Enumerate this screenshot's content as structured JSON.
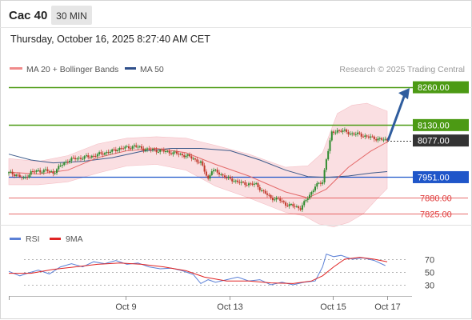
{
  "header": {
    "instrument": "Cac 40",
    "timeframe": "30 MIN",
    "datetime": "Thursday, October 16, 2025 8:27:40 AM CET"
  },
  "legend": {
    "ma20_label": "MA 20 + Bollinger Bands",
    "ma50_label": "MA 50",
    "copyright": "Research © 2025 Trading Central",
    "rsi_label": "RSI",
    "rsi_ma_label": "9MA"
  },
  "colors": {
    "green": "#4c9a14",
    "blue": "#1f56c9",
    "red": "#e03a3a",
    "candle_up": "#2e8b2e",
    "candle_down": "#c0392b",
    "band": "#fadadd",
    "ma50": "#3d5a8a",
    "rsi": "#5b80d6",
    "rsi_ma": "#e02424",
    "arrow": "#2f5d9e"
  },
  "chart_data": [
    {
      "type": "candlestick",
      "title": "",
      "ylim": [
        7790,
        8285
      ],
      "x_ticks": [
        "Oct 9",
        "Oct 13",
        "Oct 15",
        "Oct 17"
      ],
      "current_price": 8077.0,
      "levels": [
        {
          "label": "8260.00",
          "value": 8260.0,
          "style": "resistance"
        },
        {
          "label": "8130.00",
          "value": 8130.0,
          "style": "resistance"
        },
        {
          "label": "8077.00",
          "value": 8077.0,
          "style": "current"
        },
        {
          "label": "7951.00",
          "value": 7951.0,
          "style": "pivot"
        },
        {
          "label": "7880.00",
          "value": 7880.0,
          "style": "support"
        },
        {
          "label": "7825.00",
          "value": 7825.0,
          "style": "support"
        }
      ],
      "close_path": [
        [
          0,
          7965
        ],
        [
          4,
          7960
        ],
        [
          8,
          7945
        ],
        [
          12,
          7968
        ],
        [
          16,
          7972
        ],
        [
          20,
          7974
        ],
        [
          24,
          7966
        ],
        [
          28,
          7990
        ],
        [
          32,
          8008
        ],
        [
          36,
          8015
        ],
        [
          40,
          8018
        ],
        [
          44,
          8022
        ],
        [
          48,
          8028
        ],
        [
          52,
          8035
        ],
        [
          56,
          8040
        ],
        [
          60,
          8050
        ],
        [
          64,
          8052
        ],
        [
          68,
          8058
        ],
        [
          72,
          8050
        ],
        [
          76,
          8045
        ],
        [
          80,
          8043
        ],
        [
          84,
          8040
        ],
        [
          88,
          8036
        ],
        [
          92,
          8030
        ],
        [
          96,
          8025
        ],
        [
          100,
          8015
        ],
        [
          104,
          8000
        ],
        [
          108,
          7945
        ],
        [
          110,
          7975
        ],
        [
          114,
          7965
        ],
        [
          118,
          7948
        ],
        [
          122,
          7940
        ],
        [
          126,
          7930
        ],
        [
          130,
          7928
        ],
        [
          134,
          7925
        ],
        [
          138,
          7900
        ],
        [
          142,
          7880
        ],
        [
          146,
          7875
        ],
        [
          150,
          7858
        ],
        [
          154,
          7852
        ],
        [
          158,
          7845
        ],
        [
          162,
          7880
        ],
        [
          166,
          7920
        ],
        [
          170,
          7935
        ],
        [
          172,
          8015
        ],
        [
          175,
          8102
        ],
        [
          178,
          8112
        ],
        [
          182,
          8108
        ],
        [
          186,
          8100
        ],
        [
          190,
          8098
        ],
        [
          194,
          8090
        ],
        [
          198,
          8085
        ],
        [
          202,
          8080
        ],
        [
          205,
          8077
        ]
      ],
      "ma20": [
        [
          0,
          7968
        ],
        [
          16,
          7962
        ],
        [
          32,
          7975
        ],
        [
          48,
          8018
        ],
        [
          64,
          8042
        ],
        [
          80,
          8050
        ],
        [
          96,
          8035
        ],
        [
          112,
          7995
        ],
        [
          130,
          7955
        ],
        [
          150,
          7900
        ],
        [
          162,
          7880
        ],
        [
          172,
          7910
        ],
        [
          184,
          7985
        ],
        [
          196,
          8040
        ],
        [
          205,
          8072
        ]
      ],
      "bollinger": {
        "upper": [
          [
            0,
            8015
          ],
          [
            16,
            8005
          ],
          [
            32,
            8025
          ],
          [
            48,
            8065
          ],
          [
            64,
            8085
          ],
          [
            80,
            8090
          ],
          [
            96,
            8085
          ],
          [
            112,
            8060
          ],
          [
            130,
            8030
          ],
          [
            150,
            7985
          ],
          [
            162,
            7990
          ],
          [
            170,
            8035
          ],
          [
            178,
            8170
          ],
          [
            186,
            8198
          ],
          [
            194,
            8205
          ],
          [
            200,
            8190
          ],
          [
            205,
            8178
          ]
        ],
        "lower": [
          [
            0,
            7925
          ],
          [
            16,
            7925
          ],
          [
            32,
            7935
          ],
          [
            48,
            7965
          ],
          [
            64,
            7990
          ],
          [
            80,
            7995
          ],
          [
            96,
            7975
          ],
          [
            112,
            7920
          ],
          [
            130,
            7880
          ],
          [
            150,
            7830
          ],
          [
            160,
            7818
          ],
          [
            168,
            7790
          ],
          [
            176,
            7780
          ],
          [
            184,
            7795
          ],
          [
            192,
            7825
          ],
          [
            200,
            7880
          ],
          [
            205,
            7912
          ]
        ]
      },
      "ma50": [
        [
          0,
          8030
        ],
        [
          12,
          8010
        ],
        [
          24,
          8000
        ],
        [
          40,
          8005
        ],
        [
          56,
          8018
        ],
        [
          72,
          8040
        ],
        [
          88,
          8050
        ],
        [
          104,
          8050
        ],
        [
          120,
          8042
        ],
        [
          136,
          8010
        ],
        [
          150,
          7975
        ],
        [
          162,
          7953
        ],
        [
          172,
          7950
        ],
        [
          184,
          7955
        ],
        [
          196,
          7965
        ],
        [
          205,
          7970
        ]
      ]
    },
    {
      "type": "line",
      "title": "",
      "ylim": [
        15,
        85
      ],
      "y_ticks": [
        70,
        50,
        30
      ],
      "series": [
        {
          "name": "RSI",
          "values": [
            [
              0,
              51
            ],
            [
              6,
              44
            ],
            [
              10,
              48
            ],
            [
              16,
              53
            ],
            [
              22,
              47
            ],
            [
              28,
              58
            ],
            [
              34,
              63
            ],
            [
              40,
              58
            ],
            [
              46,
              66
            ],
            [
              52,
              63
            ],
            [
              58,
              68
            ],
            [
              64,
              62
            ],
            [
              70,
              64
            ],
            [
              76,
              58
            ],
            [
              82,
              55
            ],
            [
              88,
              56
            ],
            [
              94,
              52
            ],
            [
              100,
              46
            ],
            [
              104,
              32
            ],
            [
              108,
              38
            ],
            [
              112,
              34
            ],
            [
              118,
              38
            ],
            [
              124,
              42
            ],
            [
              130,
              36
            ],
            [
              136,
              38
            ],
            [
              142,
              30
            ],
            [
              148,
              34
            ],
            [
              154,
              30
            ],
            [
              160,
              34
            ],
            [
              166,
              36
            ],
            [
              170,
              58
            ],
            [
              172,
              78
            ],
            [
              176,
              74
            ],
            [
              180,
              76
            ],
            [
              186,
              70
            ],
            [
              192,
              72
            ],
            [
              198,
              68
            ],
            [
              204,
              60
            ]
          ]
        },
        {
          "name": "9MA",
          "values": [
            [
              0,
              48
            ],
            [
              12,
              48
            ],
            [
              24,
              54
            ],
            [
              36,
              58
            ],
            [
              48,
              62
            ],
            [
              60,
              64
            ],
            [
              72,
              62
            ],
            [
              84,
              58
            ],
            [
              96,
              52
            ],
            [
              106,
              42
            ],
            [
              118,
              36
            ],
            [
              130,
              36
            ],
            [
              142,
              33
            ],
            [
              154,
              32
            ],
            [
              164,
              36
            ],
            [
              170,
              44
            ],
            [
              176,
              58
            ],
            [
              182,
              70
            ],
            [
              190,
              73
            ],
            [
              198,
              70
            ],
            [
              205,
              66
            ]
          ]
        }
      ]
    }
  ]
}
